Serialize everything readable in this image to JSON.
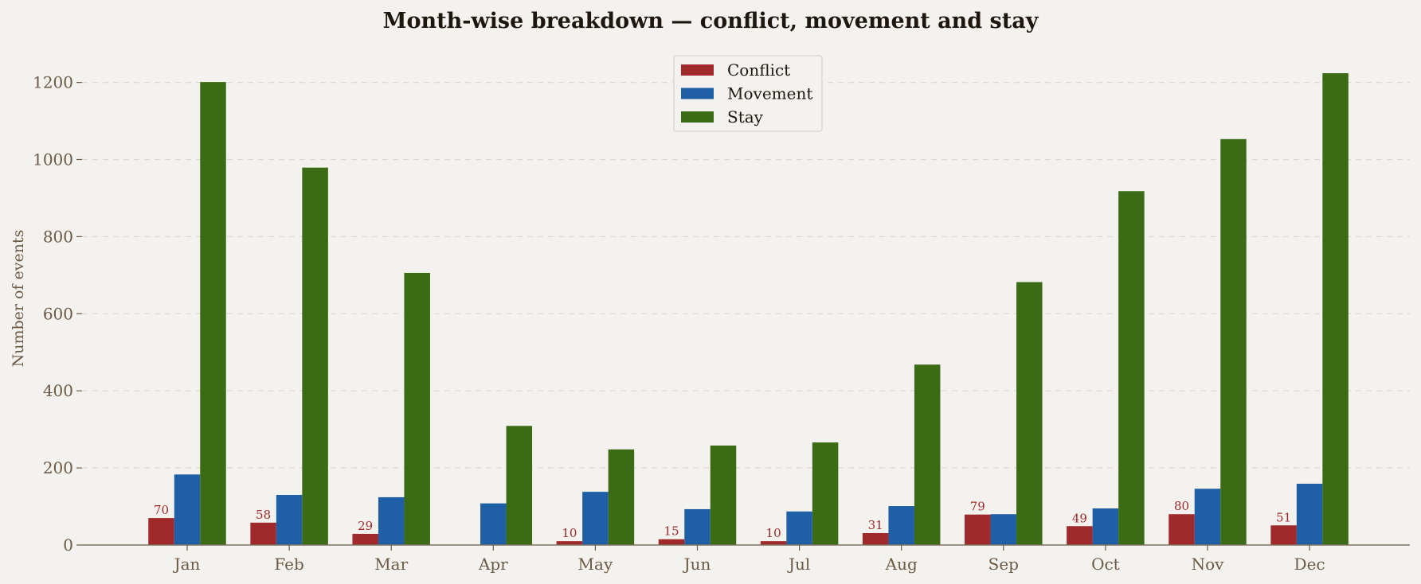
{
  "chart_data": {
    "type": "bar",
    "title": "Month-wise breakdown — conflict, movement and stay",
    "xlabel": "",
    "ylabel": "Number of events",
    "categories": [
      "Jan",
      "Feb",
      "Mar",
      "Apr",
      "May",
      "Jun",
      "Jul",
      "Aug",
      "Sep",
      "Oct",
      "Nov",
      "Dec"
    ],
    "ylim": [
      0,
      1290
    ],
    "yticks": [
      0,
      200,
      400,
      600,
      800,
      1000,
      1200
    ],
    "grid": true,
    "legend_position": "top-center",
    "series": [
      {
        "name": "Conflict",
        "color": "#a0292b",
        "values": [
          70,
          58,
          29,
          0,
          10,
          15,
          10,
          31,
          79,
          49,
          80,
          51
        ],
        "labels": [
          "70",
          "58",
          "29",
          "",
          "10",
          "15",
          "10",
          "31",
          "79",
          "49",
          "80",
          "51"
        ]
      },
      {
        "name": "Movement",
        "color": "#1f5fa6",
        "values": [
          183,
          130,
          124,
          108,
          138,
          93,
          87,
          101,
          80,
          95,
          146,
          159
        ]
      },
      {
        "name": "Stay",
        "color": "#3b6b14",
        "values": [
          1201,
          979,
          706,
          309,
          248,
          258,
          266,
          468,
          682,
          918,
          1053,
          1224
        ]
      }
    ]
  }
}
